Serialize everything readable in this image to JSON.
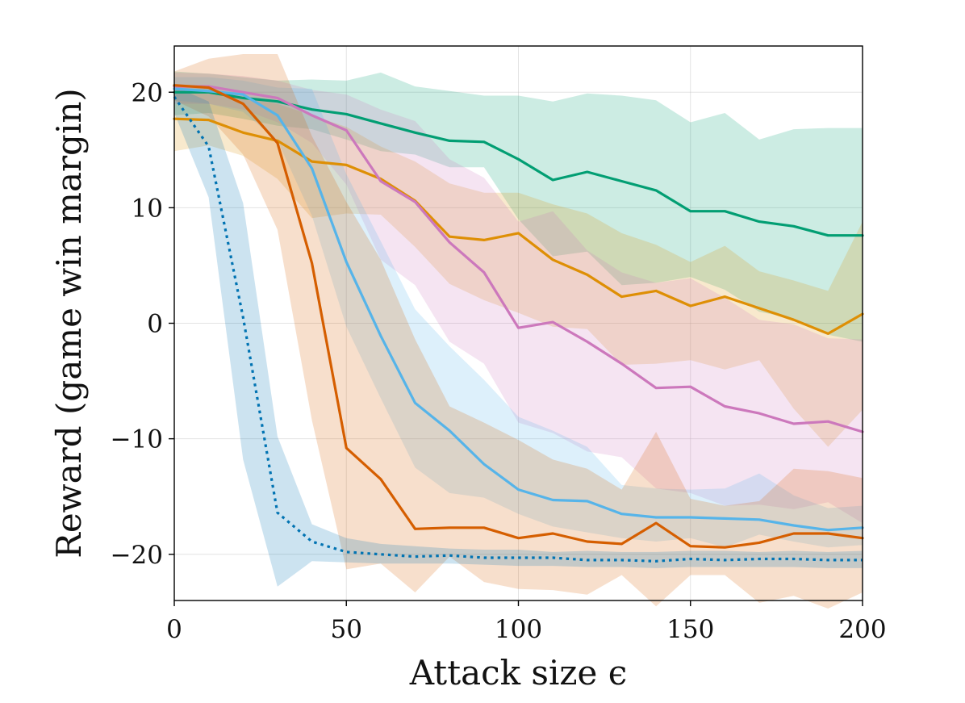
{
  "chart_data": {
    "type": "line",
    "title": "",
    "xlabel": "Attack size ϵ",
    "ylabel": "Reward (game win margin)",
    "xlim": [
      0,
      200
    ],
    "ylim": [
      -24,
      24
    ],
    "grid": true,
    "legend": "none",
    "x_ticks": [
      {
        "value": 0,
        "label": "0"
      },
      {
        "value": 50,
        "label": "50"
      },
      {
        "value": 100,
        "label": "100"
      },
      {
        "value": 150,
        "label": "150"
      },
      {
        "value": 200,
        "label": "200"
      }
    ],
    "y_ticks": [
      {
        "value": 20,
        "label": "20"
      },
      {
        "value": 10,
        "label": "10"
      },
      {
        "value": 0,
        "label": "0"
      },
      {
        "value": -10,
        "label": "−10"
      },
      {
        "value": -20,
        "label": "−20"
      }
    ],
    "x": [
      0,
      10,
      20,
      30,
      40,
      50,
      60,
      70,
      80,
      90,
      100,
      110,
      120,
      130,
      140,
      150,
      160,
      170,
      180,
      190,
      200
    ],
    "series": [
      {
        "name": "green",
        "color": "#029e73",
        "dash": false,
        "values": [
          20.0,
          20.0,
          19.5,
          19.2,
          18.5,
          18.1,
          17.3,
          16.5,
          15.8,
          15.7,
          14.2,
          12.4,
          13.1,
          12.3,
          11.5,
          9.7,
          9.7,
          8.8,
          8.4,
          7.6,
          7.6
        ],
        "upper": [
          21.8,
          21.6,
          21.3,
          21.0,
          21.1,
          21.0,
          21.7,
          20.5,
          20.1,
          19.7,
          19.7,
          19.2,
          19.9,
          19.7,
          19.3,
          17.4,
          18.2,
          15.9,
          16.8,
          16.9,
          16.9
        ],
        "lower": [
          18.0,
          18.2,
          17.7,
          17.1,
          16.8,
          15.9,
          14.9,
          14.6,
          13.5,
          13.5,
          9.0,
          5.8,
          6.2,
          3.3,
          3.5,
          4.0,
          2.9,
          1.0,
          0.4,
          -1.0,
          -1.6
        ]
      },
      {
        "name": "orange",
        "color": "#de8f05",
        "dash": false,
        "values": [
          17.7,
          17.6,
          16.5,
          15.8,
          14.0,
          13.7,
          12.5,
          10.6,
          7.5,
          7.2,
          7.8,
          5.5,
          4.2,
          2.3,
          2.8,
          1.5,
          2.3,
          1.3,
          0.3,
          -0.9,
          0.8
        ],
        "upper": [
          20.5,
          20.4,
          19.5,
          19.0,
          18.0,
          17.0,
          15.3,
          14.0,
          12.1,
          11.3,
          11.3,
          10.3,
          9.5,
          7.8,
          6.8,
          5.3,
          6.7,
          4.5,
          3.7,
          2.8,
          8.8
        ],
        "lower": [
          14.9,
          15.4,
          14.5,
          12.5,
          9.1,
          9.5,
          9.4,
          6.6,
          3.4,
          2.0,
          0.9,
          -0.3,
          -0.5,
          -3.6,
          -3.5,
          -3.2,
          -4.0,
          -3.2,
          -7.4,
          -10.7,
          -7.5
        ]
      },
      {
        "name": "pink",
        "color": "#cc78bc",
        "dash": false,
        "values": [
          20.5,
          20.5,
          20.0,
          19.5,
          18.0,
          16.7,
          12.3,
          10.5,
          7.0,
          4.4,
          -0.4,
          0.1,
          -1.6,
          -3.5,
          -5.6,
          -5.5,
          -7.2,
          -7.8,
          -8.7,
          -8.5,
          -9.4
        ],
        "upper": [
          21.7,
          21.6,
          21.4,
          21.0,
          20.2,
          19.8,
          18.5,
          17.5,
          14.2,
          12.6,
          8.8,
          9.7,
          6.3,
          4.4,
          3.5,
          3.9,
          2.2,
          0.3,
          -0.1,
          -1.3,
          -1.4
        ],
        "lower": [
          19.0,
          19.0,
          18.5,
          17.4,
          15.6,
          12.0,
          5.5,
          3.3,
          -1.6,
          -3.5,
          -8.6,
          -9.5,
          -11.1,
          -11.6,
          -14.3,
          -14.7,
          -15.8,
          -15.7,
          -16.1,
          -15.5,
          -17.3
        ]
      },
      {
        "name": "sky",
        "color": "#56b4e9",
        "dash": false,
        "values": [
          20.3,
          20.1,
          19.8,
          18.0,
          13.4,
          5.3,
          -1.1,
          -6.9,
          -9.3,
          -12.2,
          -14.4,
          -15.3,
          -15.4,
          -16.5,
          -16.8,
          -16.8,
          -16.9,
          -17.0,
          -17.5,
          -17.9,
          -17.7
        ],
        "upper": [
          21.3,
          21.3,
          21.0,
          20.4,
          20.3,
          12.9,
          7.1,
          1.2,
          -2.0,
          -4.9,
          -8.1,
          -9.3,
          -10.7,
          -14.0,
          -14.3,
          -14.4,
          -14.3,
          -13.0,
          -14.9,
          -16.0,
          -15.8
        ],
        "lower": [
          19.3,
          19.0,
          18.3,
          15.8,
          9.3,
          -0.3,
          -6.5,
          -12.5,
          -14.7,
          -15.1,
          -16.5,
          -17.6,
          -18.1,
          -18.6,
          -18.9,
          -18.6,
          -19.4,
          -18.3,
          -18.9,
          -19.4,
          -19.2
        ]
      },
      {
        "name": "vermillion",
        "color": "#d55e00",
        "dash": false,
        "values": [
          20.6,
          20.4,
          19.0,
          15.6,
          5.2,
          -10.8,
          -13.5,
          -17.8,
          -17.7,
          -17.7,
          -18.6,
          -18.2,
          -18.9,
          -19.1,
          -17.3,
          -19.3,
          -19.4,
          -19.0,
          -18.2,
          -18.2,
          -18.6
        ],
        "upper": [
          21.8,
          22.9,
          23.3,
          23.3,
          16.2,
          10.5,
          5.5,
          -1.4,
          -7.2,
          -8.6,
          -10.1,
          -11.8,
          -12.6,
          -14.4,
          -9.4,
          -15.2,
          -15.8,
          -15.4,
          -12.6,
          -12.8,
          -13.4
        ],
        "lower": [
          19.3,
          17.9,
          14.6,
          8.1,
          -8.4,
          -21.3,
          -20.8,
          -23.3,
          -20.2,
          -22.4,
          -23.0,
          -23.1,
          -23.5,
          -21.8,
          -24.5,
          -21.8,
          -21.8,
          -24.2,
          -23.6,
          -24.7,
          -23.3
        ]
      },
      {
        "name": "blue-dotted",
        "color": "#0173b2",
        "dash": true,
        "values": [
          19.6,
          15.3,
          0.5,
          -16.4,
          -18.9,
          -19.8,
          -20.0,
          -20.2,
          -20.1,
          -20.3,
          -20.3,
          -20.3,
          -20.5,
          -20.5,
          -20.6,
          -20.4,
          -20.5,
          -20.4,
          -20.4,
          -20.5,
          -20.5
        ],
        "upper": [
          20.5,
          19.2,
          10.4,
          -9.8,
          -17.4,
          -18.6,
          -19.1,
          -19.3,
          -19.5,
          -19.6,
          -19.6,
          -19.8,
          -19.7,
          -19.8,
          -19.8,
          -19.7,
          -19.7,
          -19.8,
          -19.7,
          -19.8,
          -19.7
        ],
        "lower": [
          18.2,
          10.9,
          -11.8,
          -22.8,
          -20.6,
          -20.7,
          -20.8,
          -20.8,
          -20.8,
          -20.9,
          -21.0,
          -21.0,
          -21.1,
          -21.1,
          -21.2,
          -21.1,
          -21.1,
          -21.1,
          -21.1,
          -21.2,
          -21.2
        ]
      }
    ]
  }
}
